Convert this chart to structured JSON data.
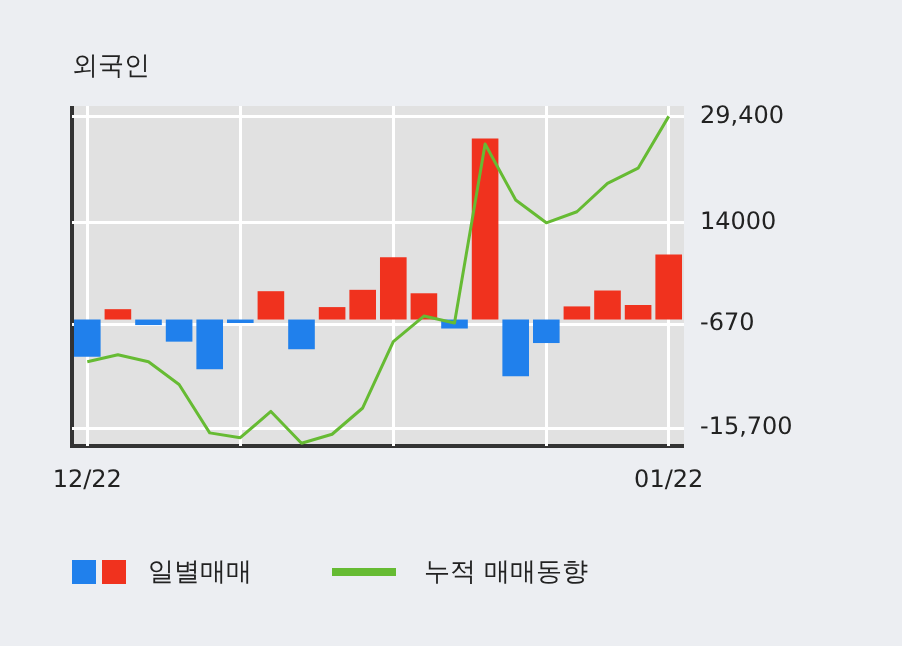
{
  "chart_data": {
    "type": "bar",
    "title": "외국인",
    "categories": [
      "12/22",
      null,
      null,
      null,
      null,
      null,
      null,
      null,
      null,
      null,
      null,
      null,
      null,
      null,
      null,
      null,
      null,
      null,
      null,
      "01/22"
    ],
    "series": [
      {
        "name": "일별매매",
        "colors": [
          "#2080ec",
          "#f0321e",
          "#2080ec",
          "#2080ec",
          "#2080ec",
          "#2080ec",
          "#f0321e",
          "#2080ec",
          "#f0321e",
          "#f0321e",
          "#f0321e",
          "#f0321e",
          "#2080ec",
          "#f0321e",
          "#2080ec",
          "#2080ec",
          "#f0321e",
          "#f0321e",
          "#f0321e",
          "#f0321e"
        ],
        "values": [
          -5400,
          1500,
          -800,
          -3200,
          -7200,
          -500,
          4100,
          -4300,
          1800,
          4300,
          9000,
          3800,
          -1300,
          26200,
          -8200,
          -3400,
          1900,
          4200,
          2100,
          9400
        ]
      },
      {
        "name": "누적 매매동향",
        "type": "line",
        "color": "#66bb33",
        "values": [
          -6100,
          -5100,
          -6100,
          -9400,
          -16400,
          -17100,
          -13300,
          -17900,
          -16600,
          -12800,
          -3200,
          500,
          -500,
          25400,
          17300,
          14000,
          15600,
          19700,
          21900,
          29400
        ]
      }
    ],
    "ylim": [
      -18300,
      30900
    ],
    "yticks": [
      {
        "value": 29400,
        "label": "29,400"
      },
      14000,
      -670,
      {
        "value": -15700,
        "label": "-15,700"
      }
    ],
    "grid": true,
    "legend": "bottom",
    "marker": "none",
    "line_style": "solid"
  }
}
